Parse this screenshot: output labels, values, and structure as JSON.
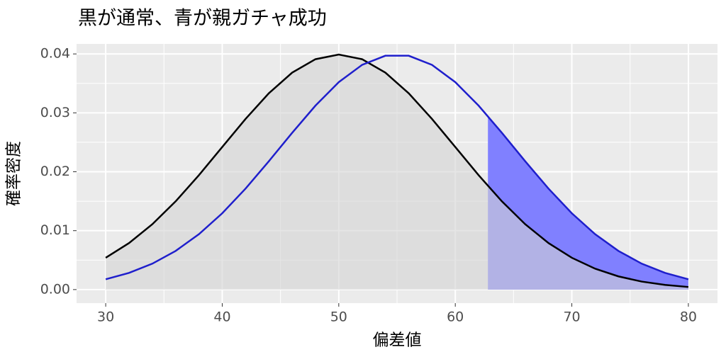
{
  "chart_data": {
    "type": "line",
    "title": "黒が通常、青が親ガチャ成功",
    "x_label": "偏差値",
    "y_label": "確率密度",
    "x": [
      30,
      32,
      34,
      36,
      38,
      40,
      42,
      44,
      46,
      48,
      50,
      52,
      54,
      56,
      58,
      60,
      62,
      64,
      66,
      68,
      70,
      72,
      74,
      76,
      78,
      80
    ],
    "series": [
      {
        "color": "#000000",
        "values": [
          0.005399,
          0.007895,
          0.011092,
          0.014973,
          0.019419,
          0.024197,
          0.028969,
          0.033322,
          0.036827,
          0.039104,
          0.039894,
          0.039104,
          0.036827,
          0.033322,
          0.028969,
          0.024197,
          0.019419,
          0.014973,
          0.011092,
          0.007895,
          0.005399,
          0.003547,
          0.002239,
          0.001358,
          0.000792,
          0.000443
        ]
      },
      {
        "color": "#1f1fcc",
        "values": [
          0.001753,
          0.002833,
          0.004398,
          0.006562,
          0.009405,
          0.012952,
          0.017137,
          0.021785,
          0.026609,
          0.031225,
          0.035207,
          0.038139,
          0.039695,
          0.039695,
          0.038139,
          0.035207,
          0.031225,
          0.026609,
          0.021785,
          0.017137,
          0.012952,
          0.009405,
          0.006562,
          0.004398,
          0.002833,
          0.001753
        ]
      }
    ],
    "fill": {
      "series": 0,
      "color": "#d3d3d3",
      "opacity": 0.6
    },
    "shade": {
      "color": "#8080ff",
      "x": [
        62.8,
        64,
        66,
        68,
        70,
        72,
        74,
        76,
        78,
        80
      ],
      "values": [
        0.029431,
        0.026609,
        0.021785,
        0.017137,
        0.012952,
        0.009405,
        0.006562,
        0.004398,
        0.002833,
        0.001753
      ]
    },
    "xlim": [
      27.5,
      82.5
    ],
    "xticks": [
      30,
      40,
      50,
      60,
      70,
      80
    ],
    "xminor": [
      35,
      45,
      55,
      65,
      75
    ],
    "ylim": [
      -0.0023,
      0.0417
    ],
    "yticks": [
      {
        "value": 0,
        "label": "0.00"
      },
      {
        "value": 0.01,
        "label": "0.01"
      },
      {
        "value": 0.02,
        "label": "0.02"
      },
      {
        "value": 0.03,
        "label": "0.03"
      },
      {
        "value": 0.04,
        "label": "0.04"
      }
    ],
    "yminor": [
      0.005,
      0.015,
      0.025,
      0.035
    ],
    "grid": true
  }
}
